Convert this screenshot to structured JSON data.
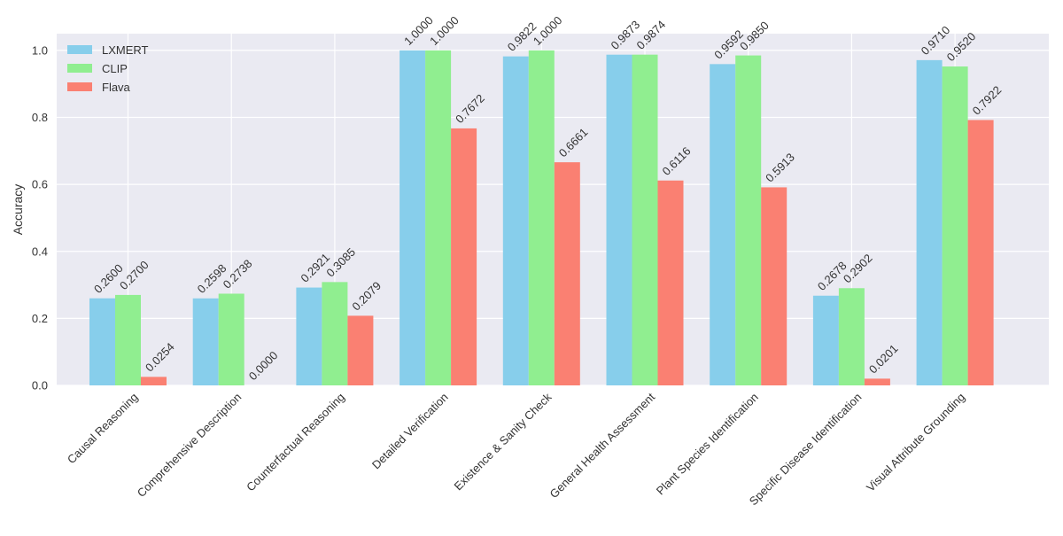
{
  "chart_data": {
    "type": "bar",
    "title": "",
    "xlabel": "",
    "ylabel": "Accuracy",
    "ylim": [
      0,
      1.05
    ],
    "yticks": [
      0.0,
      0.2,
      0.4,
      0.6,
      0.8,
      1.0
    ],
    "ytick_labels": [
      "0.0",
      "0.2",
      "0.4",
      "0.6",
      "0.8",
      "1.0"
    ],
    "grid": true,
    "legend_position": "top-left",
    "categories": [
      "Causal Reasoning",
      "Comprehensive Description",
      "Counterfactual Reasoning",
      "Detailed Verification",
      "Existence & Sanity Check",
      "General Health Assessment",
      "Plant Species Identification",
      "Specific Disease Identification",
      "Visual Attribute Grounding"
    ],
    "series": [
      {
        "name": "LXMERT",
        "color": "#87CEEB",
        "values": [
          0.26,
          0.2598,
          0.2921,
          1.0,
          0.9822,
          0.9873,
          0.9592,
          0.2678,
          0.971
        ],
        "labels": [
          "0.2600",
          "0.2598",
          "0.2921",
          "1.0000",
          "0.9822",
          "0.9873",
          "0.9592",
          "0.2678",
          "0.9710"
        ]
      },
      {
        "name": "CLIP",
        "color": "#90EE90",
        "values": [
          0.27,
          0.2738,
          0.3085,
          1.0,
          1.0,
          0.9874,
          0.985,
          0.2902,
          0.952
        ],
        "labels": [
          "0.2700",
          "0.2738",
          "0.3085",
          "1.0000",
          "1.0000",
          "0.9874",
          "0.9850",
          "0.2902",
          "0.9520"
        ]
      },
      {
        "name": "Flava",
        "color": "#FA8072",
        "values": [
          0.0254,
          0.0,
          0.2079,
          0.7672,
          0.6661,
          0.6116,
          0.5913,
          0.0201,
          0.7922
        ],
        "labels": [
          "0.0254",
          "0.0000",
          "0.2079",
          "0.7672",
          "0.6661",
          "0.6116",
          "0.5913",
          "0.0201",
          "0.7922"
        ]
      }
    ],
    "colors": {
      "plot_background": "#EAEAF2",
      "grid": "#FFFFFF",
      "text": "#333333"
    }
  }
}
